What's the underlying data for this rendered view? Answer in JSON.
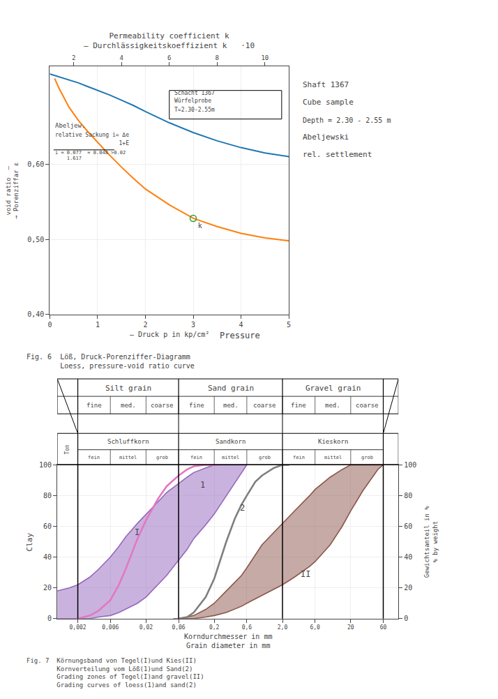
{
  "chart_data": [
    {
      "type": "line",
      "title": "Permeability coefficient k\n— Durchlässigkeitskoeffizient k   ·10",
      "xlabel": "— Druck p in kp/cm²",
      "xlabel_note": "Pressure",
      "ylabel": "void ratio  —\n→ Porenziffar ε",
      "xlim": [
        0,
        5
      ],
      "xticks": [
        0,
        1,
        2,
        3,
        4,
        5
      ],
      "ylim": [
        0.4,
        0.73
      ],
      "yticks": [
        {
          "value": 0.4,
          "label": "0,40"
        },
        {
          "value": 0.5,
          "label": "0,50"
        },
        {
          "value": 0.6,
          "label": "0,60"
        }
      ],
      "x2lim": [
        0,
        5
      ],
      "x2ticks": [
        {
          "value": 0.5,
          "label": "2"
        },
        {
          "value": 1.5,
          "label": "4"
        },
        {
          "value": 2.5,
          "label": "6"
        },
        {
          "value": 3.5,
          "label": "8"
        },
        {
          "value": 4.5,
          "label": "10"
        }
      ],
      "grid": true,
      "series": [
        {
          "x": [
            0,
            0.1,
            0.2,
            0.4,
            0.6,
            0.8,
            1.0,
            1.25,
            1.5,
            1.75,
            2.0,
            2.5,
            3.0,
            3.5,
            4.0,
            4.5,
            5.0
          ],
          "values": [
            0.72,
            0.718,
            0.716,
            0.712,
            0.708,
            0.703,
            0.698,
            0.692,
            0.685,
            0.678,
            0.67,
            0.655,
            0.642,
            0.631,
            0.622,
            0.615,
            0.61
          ]
        },
        {
          "x": [
            0.1,
            0.2,
            0.4,
            0.6,
            0.8,
            1.0,
            1.25,
            1.5,
            1.75,
            2.0,
            2.5,
            3.0,
            3.5,
            4.0,
            4.5,
            5.0
          ],
          "values": [
            0.714,
            0.7,
            0.676,
            0.658,
            0.643,
            0.629,
            0.612,
            0.596,
            0.581,
            0.567,
            0.546,
            0.528,
            0.517,
            0.508,
            0.502,
            0.498
          ]
        },
        {
          "type": "scatter",
          "marker": "circle-open",
          "x": [
            3.0
          ],
          "values": [
            0.528
          ],
          "label": "k"
        }
      ],
      "box": {
        "x": [
          2.5,
          4.85
        ],
        "y": [
          0.66,
          0.698
        ],
        "texts": [
          {
            "text": "Schacht 1367",
            "x": 2.58,
            "y": 0.688
          },
          {
            "text": "Würfelprobe",
            "x": 2.58,
            "y": 0.678
          },
          {
            "text": "T=2.30-2.55m",
            "x": 2.58,
            "y": 0.666
          }
        ]
      },
      "annotations": [
        {
          "text": "Abeljew.",
          "x": 0.08,
          "y": 0.645
        },
        {
          "text": "relative Sackung i= Δe",
          "x": 0.08,
          "y": 0.633
        },
        {
          "text": "                   1+E",
          "x": 0.08,
          "y": 0.622
        },
        {
          "text": "i = 0.077  = 0.048 >0.02",
          "x": 0.08,
          "y": 0.61
        },
        {
          "text": "    1.617",
          "x": 0.08,
          "y": 0.602
        }
      ],
      "fraction_line": {
        "x": [
          0.08,
          1.35
        ],
        "y": [
          0.619,
          0.619
        ]
      },
      "side_texts": [
        "Shaft 1367",
        "Cube sample",
        "Depth = 2.30 - 2.55 m",
        "Abeljewski",
        "rel. settlement"
      ],
      "caption": "Fig. 6  Löß, Druck-Porenziffer-Diagramm\n        Loess, pressure-void ratio curve"
    },
    {
      "type": "line",
      "log": "x",
      "xlabel": "Korndurchmesser in mm\nGrain diameter in mm",
      "ylabel": "Clay",
      "y2label": "Gewichtsanteil in %\n% by weight",
      "xlim": [
        0.001,
        100
      ],
      "xticks": [
        {
          "value": 0.002,
          "label": "0,002"
        },
        {
          "value": 0.006,
          "label": "0,006"
        },
        {
          "value": 0.02,
          "label": "0,02"
        },
        {
          "value": 0.06,
          "label": "0,06"
        },
        {
          "value": 0.2,
          "label": "0,2"
        },
        {
          "value": 0.6,
          "label": "0,6"
        },
        {
          "value": 2.0,
          "label": "2,0"
        },
        {
          "value": 6.0,
          "label": "6,0"
        },
        20,
        60
      ],
      "ylim": [
        0,
        100
      ],
      "yticks": [
        0,
        20,
        40,
        60,
        80,
        100
      ],
      "y2lim": [
        0,
        100
      ],
      "y2ticks": [
        0,
        20,
        40,
        60,
        80,
        100
      ],
      "grid": true,
      "series": [
        {
          "type": "band",
          "x": [
            0.001,
            0.0015,
            0.002,
            0.003,
            0.004,
            0.006,
            0.008,
            0.01,
            0.015,
            0.02,
            0.03,
            0.04,
            0.06,
            0.08,
            0.1,
            0.15,
            0.2,
            0.3,
            0.5,
            0.6
          ],
          "lower": [
            0,
            0,
            0,
            0,
            1,
            2,
            4,
            6,
            10,
            14,
            22,
            28,
            38,
            45,
            52,
            61,
            68,
            80,
            95,
            100
          ],
          "upper": [
            18,
            20,
            22,
            27,
            32,
            40,
            47,
            53,
            62,
            68,
            76,
            82,
            88,
            92,
            95,
            98,
            100,
            100,
            100,
            100
          ]
        },
        {
          "type": "band",
          "x": [
            0.05,
            0.06,
            0.08,
            0.1,
            0.15,
            0.2,
            0.3,
            0.5,
            0.6,
            1.0,
            2.0,
            3.0,
            5.0,
            6.0,
            10,
            15,
            20,
            30,
            50,
            60
          ],
          "lower": [
            0,
            0,
            0,
            0,
            1,
            2,
            4,
            8,
            10,
            15,
            22,
            27,
            34,
            37,
            48,
            60,
            70,
            83,
            97,
            100
          ],
          "upper": [
            0,
            0,
            1,
            2,
            6,
            10,
            18,
            28,
            33,
            48,
            62,
            70,
            80,
            84,
            92,
            97,
            100,
            100,
            100,
            100
          ]
        },
        {
          "x": [
            0.002,
            0.003,
            0.004,
            0.006,
            0.008,
            0.01,
            0.015,
            0.02,
            0.03,
            0.04,
            0.06,
            0.08,
            0.1,
            0.15,
            0.2,
            0.25
          ],
          "values": [
            0,
            2,
            5,
            12,
            22,
            32,
            52,
            64,
            78,
            86,
            93,
            97,
            99,
            100,
            100,
            100
          ]
        },
        {
          "x": [
            0.06,
            0.08,
            0.1,
            0.15,
            0.2,
            0.3,
            0.4,
            0.5,
            0.6,
            0.8,
            1.0,
            1.5,
            2.0,
            2.5
          ],
          "values": [
            0,
            1,
            4,
            14,
            26,
            50,
            65,
            74,
            80,
            89,
            93,
            98,
            100,
            100
          ]
        }
      ],
      "annotations": [
        {
          "text": "I",
          "x": 0.013,
          "y": 52
        },
        {
          "text": "II",
          "x": 3.5,
          "y": 25
        },
        {
          "text": "1",
          "x": 0.12,
          "y": 83
        },
        {
          "text": "2",
          "x": 0.45,
          "y": 68
        }
      ],
      "major_boundaries": [
        0.002,
        0.06,
        2.0,
        60.0
      ],
      "sub_boundaries": [
        0.002,
        0.006,
        0.02,
        0.06,
        0.2,
        0.6,
        2.0,
        6.0,
        20.0,
        60.0
      ],
      "header_rows": [
        {
          "side_label": "Ton",
          "labels": [
            "Schluffkorn",
            "Sandkorn",
            "Kieskorn"
          ],
          "sub_labels": [
            "fein",
            "mittel",
            "grob",
            "fein",
            "mittel",
            "grob",
            "fein",
            "mittel",
            "grob"
          ]
        },
        {
          "labels": [
            "Silt grain",
            "Sand grain",
            "Gravel grain"
          ],
          "sub_labels": [
            "fine",
            "med.",
            "coarse",
            "fine",
            "med.",
            "coarse",
            "fine",
            "med.",
            "coarse"
          ]
        }
      ],
      "caption": "Fig. 7  Körnungsband von Tegel(I)und Kies(II)\n        Kornverteilung vom Löß(1)und Sand(2)\n        Grading zones of Tegel(I)and gravel(II)\n        Grading curves of loess(1)and sand(2)"
    }
  ]
}
